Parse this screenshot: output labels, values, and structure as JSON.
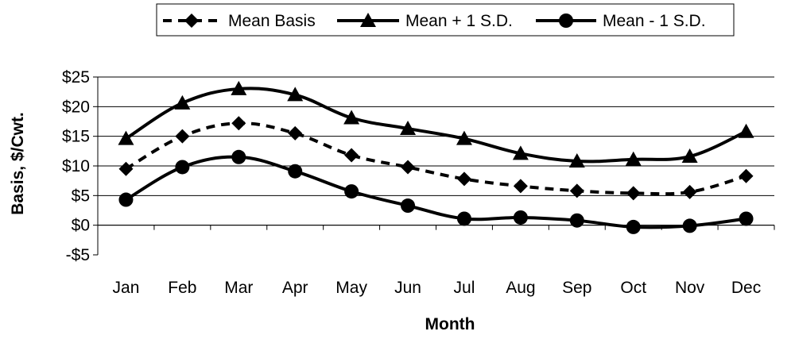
{
  "chart_data": {
    "type": "line",
    "title": "",
    "xlabel": "Month",
    "ylabel": "Basis, $/Cwt.",
    "categories": [
      "Jan",
      "Feb",
      "Mar",
      "Apr",
      "May",
      "Jun",
      "Jul",
      "Aug",
      "Sep",
      "Oct",
      "Nov",
      "Dec"
    ],
    "ylim": [
      -5,
      25
    ],
    "yticks": [
      -5,
      0,
      5,
      10,
      15,
      20,
      25
    ],
    "ytick_labels": [
      "-$5",
      "$0",
      "$5",
      "$10",
      "$15",
      "$20",
      "$25"
    ],
    "grid": true,
    "legend_position": "top",
    "series": [
      {
        "name": "Mean Basis",
        "marker": "diamond",
        "line": "dashed",
        "values": [
          9.5,
          15.0,
          17.2,
          15.5,
          11.8,
          9.8,
          7.8,
          6.6,
          5.8,
          5.4,
          5.6,
          8.3
        ]
      },
      {
        "name": "Mean + 1 S.D.",
        "marker": "triangle",
        "line": "solid",
        "values": [
          14.6,
          20.6,
          23.0,
          22.0,
          18.1,
          16.3,
          14.6,
          12.1,
          10.8,
          11.1,
          11.6,
          15.8
        ]
      },
      {
        "name": "Mean - 1 S.D.",
        "marker": "circle",
        "line": "solid",
        "values": [
          4.3,
          9.8,
          11.5,
          9.1,
          5.7,
          3.3,
          1.1,
          1.3,
          0.8,
          -0.3,
          -0.1,
          1.1
        ]
      }
    ]
  }
}
